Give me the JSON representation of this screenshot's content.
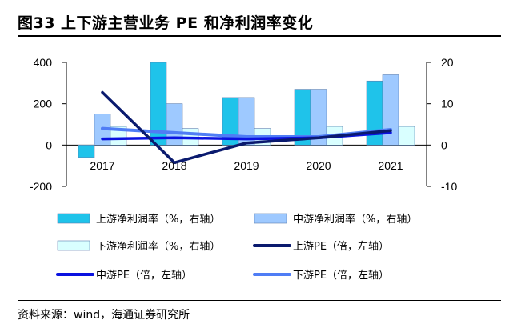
{
  "title": "图33 上下游主营业务 PE 和净利润率变化",
  "source": "资料来源：wind，海通证券研究所",
  "colors": {
    "upstream_margin": "#1fc3ea",
    "midstream_margin": "#9ec9ff",
    "downstream_margin": "#d9ffff",
    "upstream_pe": "#0a1a6e",
    "midstream_pe": "#0a12e0",
    "downstream_pe": "#4f7df5"
  },
  "chart_data": {
    "type": "bar+line",
    "categories": [
      "2017",
      "2018",
      "2019",
      "2020",
      "2021"
    ],
    "left_axis": {
      "min": -200,
      "max": 400,
      "ticks": [
        "-200",
        "0",
        "200",
        "400"
      ]
    },
    "right_axis": {
      "min": -10,
      "max": 20,
      "ticks": [
        "-10",
        "0",
        "10",
        "20"
      ]
    },
    "bar_series": [
      {
        "name": "上游净利润率（%，右轴）",
        "axis": "right",
        "values": [
          -3,
          20,
          11.5,
          13.5,
          15.5
        ]
      },
      {
        "name": "中游净利润率（%，右轴）",
        "axis": "right",
        "values": [
          7.5,
          10,
          11.5,
          13.5,
          17
        ]
      },
      {
        "name": "下游净利润率（%，右轴）",
        "axis": "right",
        "values": [
          4.5,
          4,
          4,
          4.5,
          4.5
        ]
      }
    ],
    "line_series": [
      {
        "name": "上游PE（倍，左轴）",
        "axis": "left",
        "values": [
          255,
          -85,
          10,
          35,
          70
        ]
      },
      {
        "name": "中游PE（倍，左轴）",
        "axis": "left",
        "values": [
          30,
          35,
          30,
          35,
          60
        ]
      },
      {
        "name": "下游PE（倍，左轴）",
        "axis": "left",
        "values": [
          80,
          60,
          40,
          40,
          75
        ]
      }
    ]
  }
}
